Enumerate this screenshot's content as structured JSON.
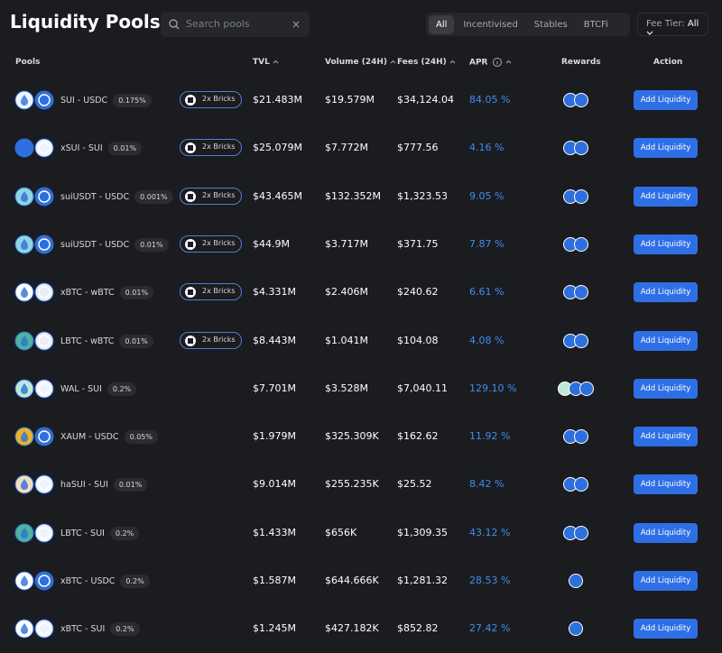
{
  "header": {
    "title": "Liquidity Pools",
    "search_placeholder": "Search pools",
    "tabs": [
      "All",
      "Incentivised",
      "Stables",
      "BTCFi"
    ],
    "fee_tier": {
      "label": "Fee Tier:",
      "value": "All"
    }
  },
  "table": {
    "columns": [
      "Pools",
      "TVL",
      "Volume (24H)",
      "Fees (24H)",
      "APR",
      "Rewards",
      "Action"
    ],
    "rows": [
      {
        "pair": "SUI - USDC",
        "fee": "0.175%",
        "badge": "2x Bricks",
        "tvl": "$21.483M",
        "volume": "$19.579M",
        "fees": "$34,124.04",
        "apr": "84.05 %",
        "action": "Add Liquidity"
      },
      {
        "pair": "xSUI - SUI",
        "fee": "0.01%",
        "badge": "2x Bricks",
        "tvl": "$25.079M",
        "volume": "$7.772M",
        "fees": "$777.56",
        "apr": "4.16 %",
        "action": "Add Liquidity"
      },
      {
        "pair": "suiUSDT - USDC",
        "fee": "0.001%",
        "badge": "2x Bricks",
        "tvl": "$43.465M",
        "volume": "$132.352M",
        "fees": "$1,323.53",
        "apr": "9.05 %",
        "action": "Add Liquidity"
      },
      {
        "pair": "suiUSDT - USDC",
        "fee": "0.01%",
        "badge": "2x Bricks",
        "tvl": "$44.9M",
        "volume": "$3.717M",
        "fees": "$371.75",
        "apr": "7.87 %",
        "action": "Add Liquidity"
      },
      {
        "pair": "xBTC - wBTC",
        "fee": "0.01%",
        "badge": "2x Bricks",
        "tvl": "$4.331M",
        "volume": "$2.406M",
        "fees": "$240.62",
        "apr": "6.61 %",
        "action": "Add Liquidity"
      },
      {
        "pair": "LBTC - wBTC",
        "fee": "0.01%",
        "badge": "2x Bricks",
        "tvl": "$8.443M",
        "volume": "$1.041M",
        "fees": "$104.08",
        "apr": "4.08 %",
        "action": "Add Liquidity"
      },
      {
        "pair": "WAL - SUI",
        "fee": "0.2%",
        "tvl": "$7.701M",
        "volume": "$3.528M",
        "fees": "$7,040.11",
        "apr": "129.10 %",
        "action": "Add Liquidity"
      },
      {
        "pair": "XAUM - USDC",
        "fee": "0.05%",
        "tvl": "$1.979M",
        "volume": "$325.309K",
        "fees": "$162.62",
        "apr": "11.92 %",
        "action": "Add Liquidity"
      },
      {
        "pair": "haSUI - SUI",
        "fee": "0.01%",
        "tvl": "$9.014M",
        "volume": "$255.235K",
        "fees": "$25.52",
        "apr": "8.42 %",
        "action": "Add Liquidity"
      },
      {
        "pair": "LBTC - SUI",
        "fee": "0.2%",
        "tvl": "$1.433M",
        "volume": "$656K",
        "fees": "$1,309.35",
        "apr": "43.12 %",
        "action": "Add Liquidity"
      },
      {
        "pair": "xBTC - USDC",
        "fee": "0.2%",
        "tvl": "$1.587M",
        "volume": "$644.666K",
        "fees": "$1,281.32",
        "apr": "28.53 %",
        "action": "Add Liquidity"
      },
      {
        "pair": "xBTC - SUI",
        "fee": "0.2%",
        "tvl": "$1.245M",
        "volume": "$427.182K",
        "fees": "$852.82",
        "apr": "27.42 %",
        "action": "Add Liquidity"
      }
    ]
  }
}
